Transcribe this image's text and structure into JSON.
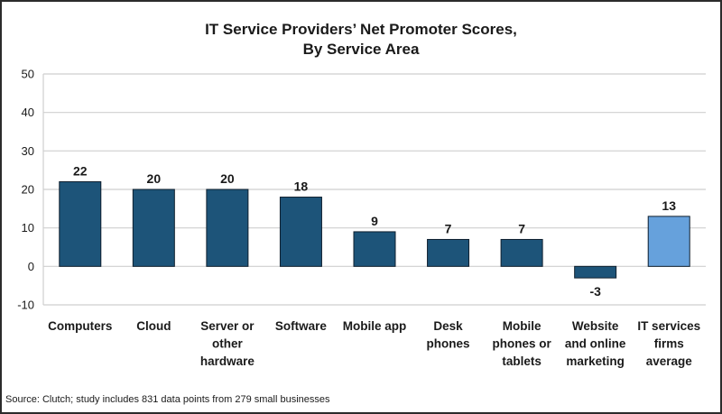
{
  "chart_data": {
    "type": "bar",
    "title": [
      "IT Service Providers’ Net Promoter Scores,",
      "By Service Area"
    ],
    "xlabel": "",
    "ylabel": "",
    "ylim": [
      -10,
      50
    ],
    "yticks": [
      50,
      40,
      30,
      20,
      10,
      0,
      -10
    ],
    "grid": true,
    "legend": "none",
    "categories": [
      [
        "Computers"
      ],
      [
        "Cloud"
      ],
      [
        "Server or",
        "other",
        "hardware"
      ],
      [
        "Software"
      ],
      [
        "Mobile app"
      ],
      [
        "Desk",
        "phones"
      ],
      [
        "Mobile",
        "phones or",
        "tablets"
      ],
      [
        "Website",
        "and online",
        "marketing"
      ],
      [
        "IT services",
        "firms",
        "average"
      ]
    ],
    "values": [
      22,
      20,
      20,
      18,
      9,
      7,
      7,
      -3,
      13
    ],
    "data_labels": [
      "22",
      "20",
      "20",
      "18",
      "9",
      "7",
      "7",
      "-3",
      "13"
    ],
    "colors": {
      "default": "#1d5479",
      "highlight": "#66a1dc",
      "highlight_index": 8,
      "bar_border": "#0f1f2e",
      "grid": "#cfcfcf"
    },
    "source": "Source: Clutch; study includes 831 data points from 279 small businesses"
  }
}
